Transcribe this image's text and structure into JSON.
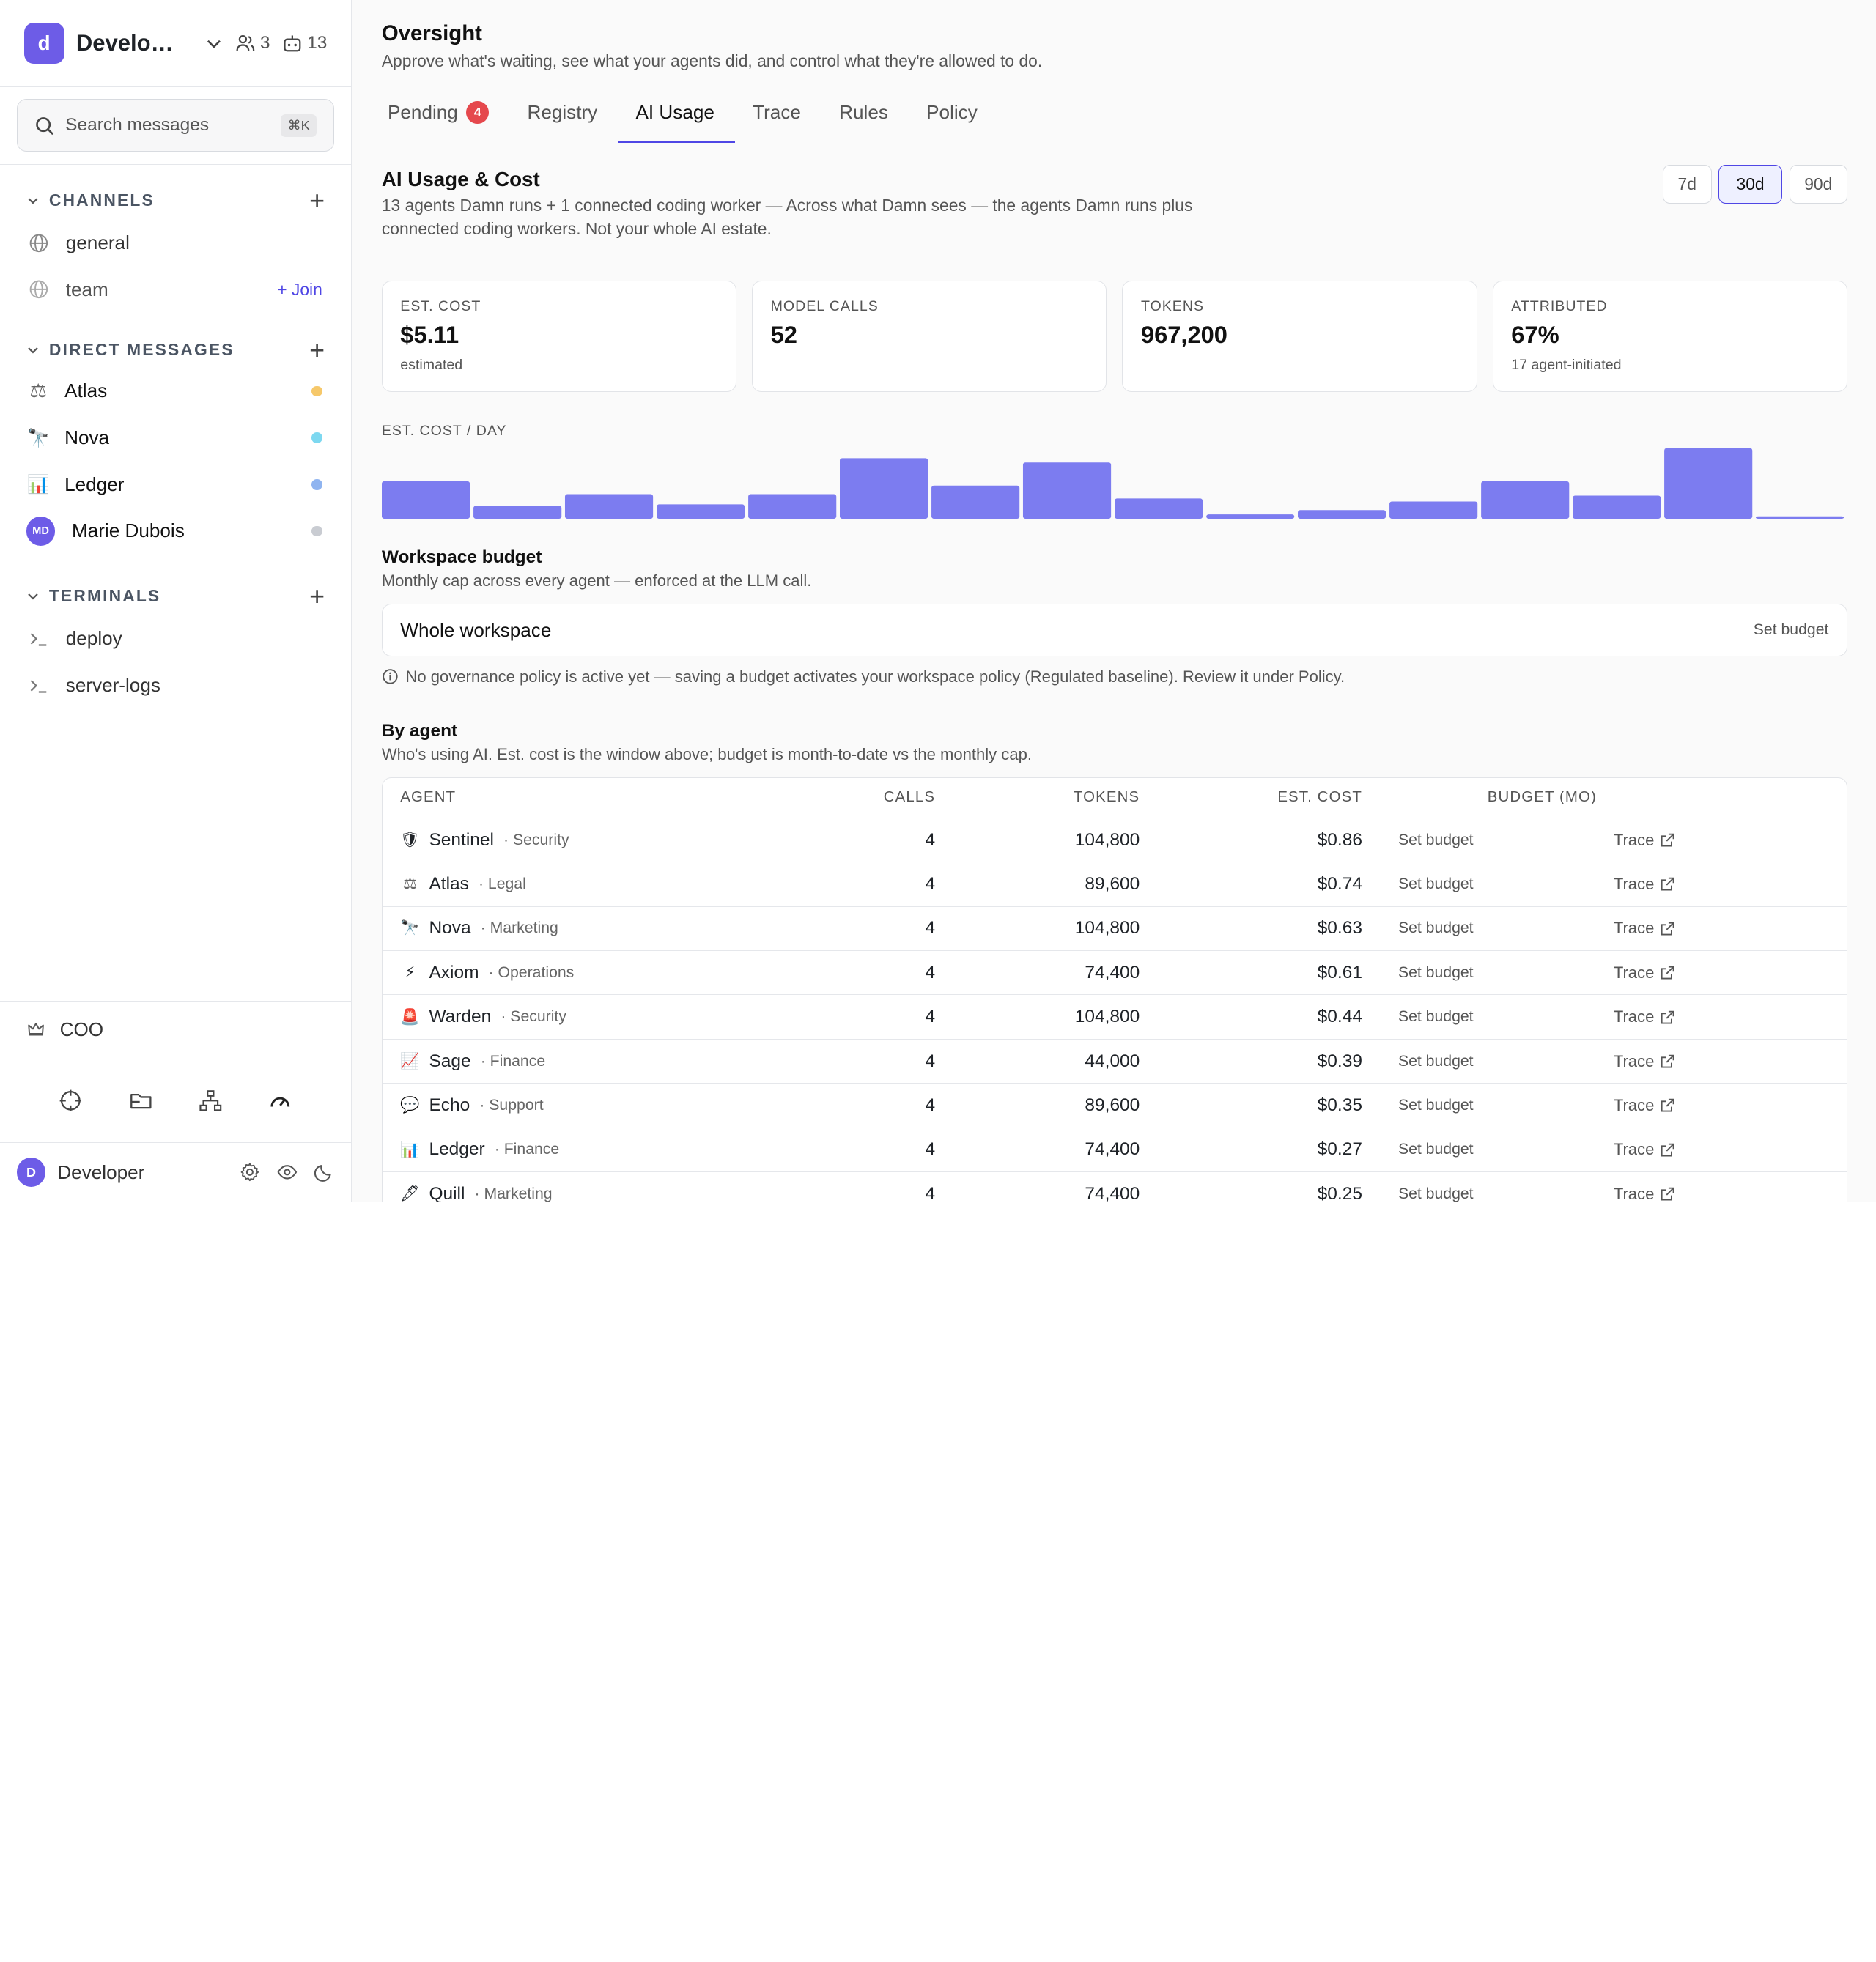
{
  "workspace": {
    "initial": "d",
    "name": "Developer",
    "members": "3",
    "bots": "13"
  },
  "search": {
    "placeholder": "Search messages",
    "shortcut": "⌘K"
  },
  "channels": {
    "title": "CHANNELS",
    "items": [
      {
        "label": "general"
      },
      {
        "label": "team",
        "action": "+ Join"
      }
    ]
  },
  "dms": {
    "title": "DIRECT MESSAGES",
    "items": [
      {
        "label": "Atlas",
        "icon": "⚖",
        "dot": "#f6c86a"
      },
      {
        "label": "Nova",
        "icon": "🔭",
        "dot": "#7dd8f0"
      },
      {
        "label": "Ledger",
        "icon": "📊",
        "dot": "#8fb4f0"
      },
      {
        "label": "Marie Dubois",
        "initials": "MD",
        "dot": "#c9ccd2"
      }
    ]
  },
  "terminals": {
    "title": "TERMINALS",
    "items": [
      {
        "label": "deploy"
      },
      {
        "label": "server-logs"
      }
    ]
  },
  "coo": {
    "label": "COO"
  },
  "user": {
    "initial": "D",
    "name": "Developer"
  },
  "header": {
    "title": "Oversight",
    "subtitle": "Approve what's waiting, see what your agents did, and control what they're allowed to do."
  },
  "tabs": [
    {
      "label": "Pending",
      "badge": "4"
    },
    {
      "label": "Registry"
    },
    {
      "label": "AI Usage",
      "active": true
    },
    {
      "label": "Trace"
    },
    {
      "label": "Rules"
    },
    {
      "label": "Policy"
    }
  ],
  "usage": {
    "title": "AI Usage & Cost",
    "desc": "13 agents Damn runs + 1 connected coding worker — Across what Damn sees — the agents Damn runs plus connected coding workers. Not your whole AI estate.",
    "ranges": [
      "7d",
      "30d",
      "90d"
    ],
    "selected_range": "30d"
  },
  "cards": [
    {
      "label": "EST. COST",
      "value": "$5.11",
      "note": "estimated"
    },
    {
      "label": "MODEL CALLS",
      "value": "52",
      "note": ""
    },
    {
      "label": "TOKENS",
      "value": "967,200",
      "note": ""
    },
    {
      "label": "ATTRIBUTED",
      "value": "67%",
      "note": "17 agent-initiated"
    }
  ],
  "chart_data": {
    "type": "bar",
    "title": "EST. COST / DAY",
    "values": [
      0.52,
      0.18,
      0.34,
      0.2,
      0.34,
      0.84,
      0.46,
      0.78,
      0.28,
      0.06,
      0.12,
      0.24,
      0.52,
      0.32,
      0.98,
      0.02
    ],
    "color": "#7c7cf0"
  },
  "budget": {
    "title": "Workspace budget",
    "desc": "Monthly cap across every agent — enforced at the LLM call.",
    "scope": "Whole workspace",
    "action": "Set budget",
    "info": "No governance policy is active yet — saving a budget activates your workspace policy (Regulated baseline). Review it under Policy."
  },
  "by_agent": {
    "title": "By agent",
    "desc": "Who's using AI. Est. cost is the window above; budget is month-to-date vs the monthly cap.",
    "columns": [
      "AGENT",
      "CALLS",
      "TOKENS",
      "EST. COST",
      "BUDGET (MO)"
    ],
    "rows": [
      {
        "icon": "🛡",
        "name": "Sentinel",
        "dept": "· Security",
        "calls": "4",
        "tokens": "104,800",
        "cost": "$0.86",
        "budget": "Set budget",
        "trace": "Trace"
      },
      {
        "icon": "⚖",
        "name": "Atlas",
        "dept": "· Legal",
        "calls": "4",
        "tokens": "89,600",
        "cost": "$0.74",
        "budget": "Set budget",
        "trace": "Trace"
      },
      {
        "icon": "🔭",
        "name": "Nova",
        "dept": "· Marketing",
        "calls": "4",
        "tokens": "104,800",
        "cost": "$0.63",
        "budget": "Set budget",
        "trace": "Trace"
      },
      {
        "icon": "⚡",
        "name": "Axiom",
        "dept": "· Operations",
        "calls": "4",
        "tokens": "74,400",
        "cost": "$0.61",
        "budget": "Set budget",
        "trace": "Trace"
      },
      {
        "icon": "🚨",
        "name": "Warden",
        "dept": "· Security",
        "calls": "4",
        "tokens": "104,800",
        "cost": "$0.44",
        "budget": "Set budget",
        "trace": "Trace"
      },
      {
        "icon": "📈",
        "name": "Sage",
        "dept": "· Finance",
        "calls": "4",
        "tokens": "44,000",
        "cost": "$0.39",
        "budget": "Set budget",
        "trace": "Trace"
      },
      {
        "icon": "💬",
        "name": "Echo",
        "dept": "· Support",
        "calls": "4",
        "tokens": "89,600",
        "cost": "$0.35",
        "budget": "Set budget",
        "trace": "Trace"
      },
      {
        "icon": "📊",
        "name": "Ledger",
        "dept": "· Finance",
        "calls": "4",
        "tokens": "74,400",
        "cost": "$0.27",
        "budget": "Set budget",
        "trace": "Trace"
      },
      {
        "icon": "🖋",
        "name": "Quill",
        "dept": "· Marketing",
        "calls": "4",
        "tokens": "74,400",
        "cost": "$0.25",
        "budget": "Set budget",
        "trace": "Trace"
      }
    ]
  }
}
